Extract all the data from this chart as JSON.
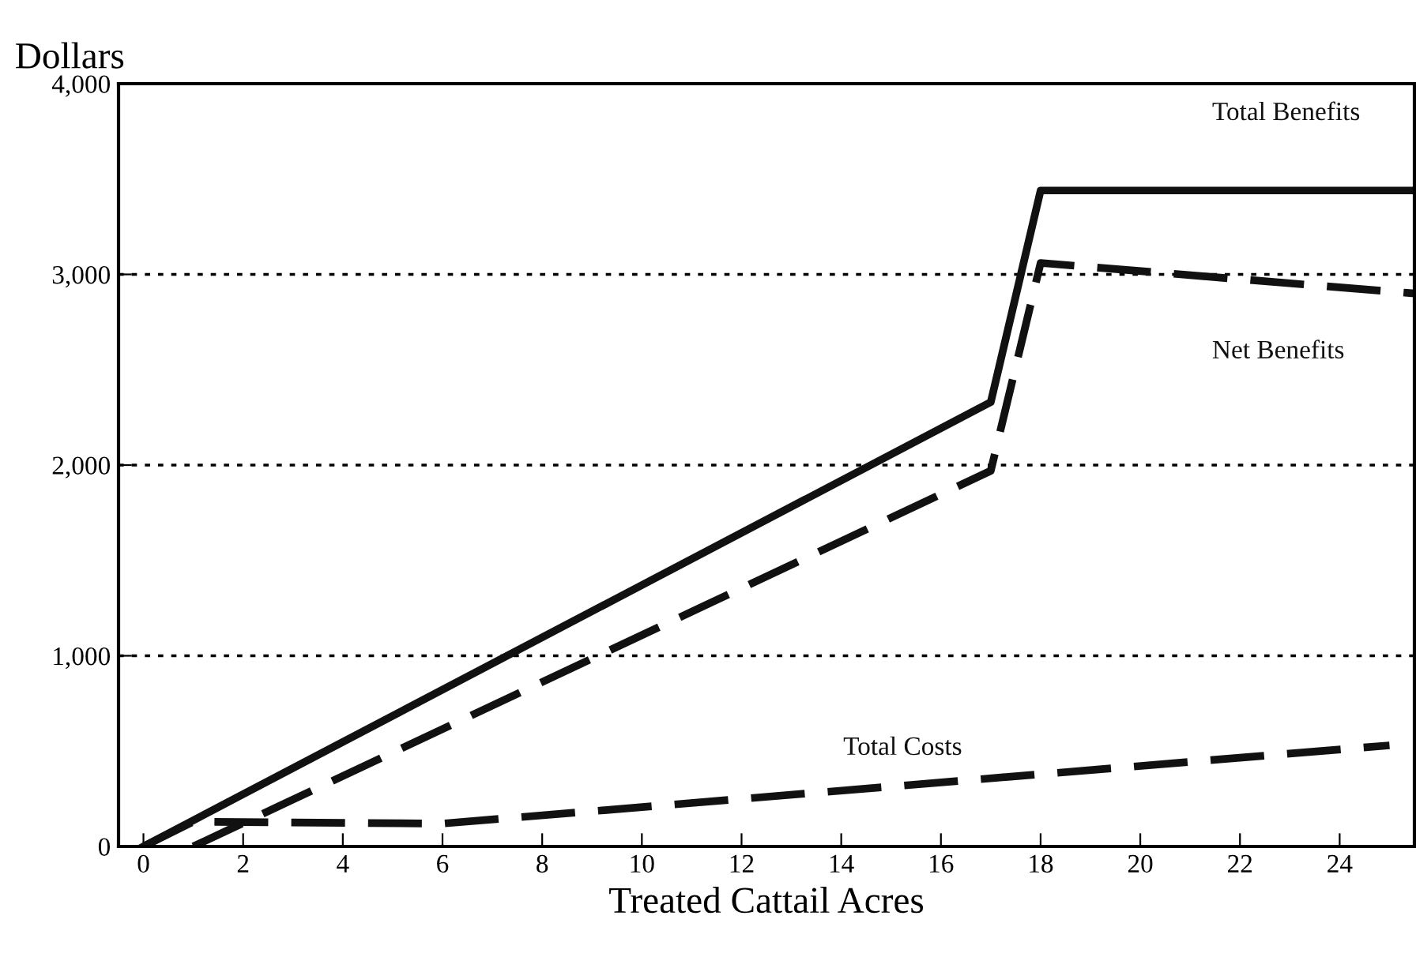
{
  "chart_data": {
    "type": "line",
    "ylabel": "Dollars",
    "xlabel": "Treated Cattail Acres",
    "xlim": [
      -0.5,
      25.5
    ],
    "xticks": [
      0,
      2,
      4,
      6,
      8,
      10,
      12,
      14,
      16,
      18,
      20,
      22,
      24
    ],
    "ylim": [
      0,
      4000
    ],
    "yticks": [
      {
        "value": 0,
        "label": "0"
      },
      {
        "value": 1000,
        "label": "1,000"
      },
      {
        "value": 2000,
        "label": "2,000"
      },
      {
        "value": 3000,
        "label": "3,000"
      },
      {
        "value": 4000,
        "label": "4,000"
      }
    ],
    "grid": "y",
    "legend": false,
    "series": [
      {
        "name": "Total Benefits",
        "color": "#111111",
        "line_style": "solid",
        "x": [
          0,
          17,
          18,
          25.5
        ],
        "values": [
          0,
          2330,
          3440,
          3440
        ]
      },
      {
        "name": "Net Benefits",
        "color": "#111111",
        "line_style": "dashed",
        "x": [
          1,
          17,
          18,
          25.5
        ],
        "values": [
          0,
          1970,
          3060,
          2900
        ]
      },
      {
        "name": "Total Costs",
        "color": "#111111",
        "line_style": "dashed",
        "x": [
          0,
          1,
          6,
          25
        ],
        "values": [
          0,
          130,
          120,
          530
        ]
      }
    ]
  }
}
